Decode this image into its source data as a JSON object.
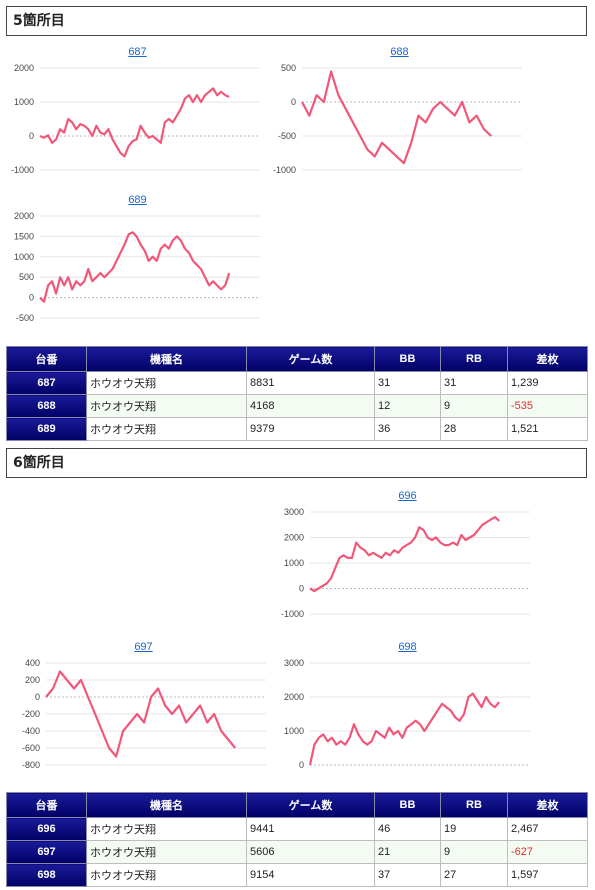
{
  "sections": [
    {
      "title": "5箇所目",
      "columns": [
        "台番",
        "機種名",
        "ゲーム数",
        "BB",
        "RB",
        "差枚"
      ],
      "rows": [
        {
          "no": "687",
          "model": "ホウオウ天翔",
          "games": "8831",
          "bb": "31",
          "rb": "31",
          "diff": "1,239"
        },
        {
          "no": "688",
          "model": "ホウオウ天翔",
          "games": "4168",
          "bb": "12",
          "rb": "9",
          "diff": "-535"
        },
        {
          "no": "689",
          "model": "ホウオウ天翔",
          "games": "9379",
          "bb": "36",
          "rb": "28",
          "diff": "1,521"
        }
      ]
    },
    {
      "title": "6箇所目",
      "columns": [
        "台番",
        "機種名",
        "ゲーム数",
        "BB",
        "RB",
        "差枚"
      ],
      "rows": [
        {
          "no": "696",
          "model": "ホウオウ天翔",
          "games": "9441",
          "bb": "46",
          "rb": "19",
          "diff": "2,467"
        },
        {
          "no": "697",
          "model": "ホウオウ天翔",
          "games": "5606",
          "bb": "21",
          "rb": "9",
          "diff": "-627"
        },
        {
          "no": "698",
          "model": "ホウオウ天翔",
          "games": "9154",
          "bb": "37",
          "rb": "27",
          "diff": "1,597"
        }
      ]
    }
  ],
  "colors": {
    "line": "#f0587a",
    "header": "#00007a",
    "negative": "#e0302e",
    "link": "#1a66cc"
  },
  "chart_data": [
    {
      "type": "line",
      "title": "687",
      "ylim": [
        -1000,
        2000
      ],
      "yticks": [
        -1000,
        0,
        1000,
        2000
      ],
      "values": [
        0,
        -50,
        20,
        -200,
        -100,
        200,
        100,
        500,
        400,
        200,
        350,
        300,
        200,
        0,
        300,
        100,
        50,
        200,
        -100,
        -300,
        -500,
        -600,
        -300,
        -150,
        -100,
        300,
        100,
        -50,
        0,
        -100,
        -200,
        400,
        500,
        400,
        600,
        800,
        1100,
        1200,
        1000,
        1200,
        1000,
        1200,
        1300,
        1400,
        1200,
        1300,
        1200,
        1150
      ]
    },
    {
      "type": "line",
      "title": "688",
      "ylim": [
        -1000,
        500
      ],
      "yticks": [
        -1000,
        -500,
        0,
        500
      ],
      "values": [
        0,
        -200,
        100,
        0,
        450,
        100,
        -100,
        -300,
        -500,
        -700,
        -800,
        -600,
        -700,
        -800,
        -900,
        -600,
        -200,
        -300,
        -100,
        0,
        -100,
        -200,
        0,
        -300,
        -200,
        -400,
        -500
      ]
    },
    {
      "type": "line",
      "title": "689",
      "ylim": [
        -500,
        2000
      ],
      "yticks": [
        -500,
        0,
        500,
        1000,
        1500,
        2000
      ],
      "values": [
        0,
        -100,
        300,
        400,
        100,
        500,
        300,
        500,
        200,
        400,
        300,
        400,
        700,
        400,
        500,
        600,
        500,
        600,
        700,
        900,
        1100,
        1300,
        1550,
        1600,
        1500,
        1300,
        1150,
        900,
        1000,
        900,
        1200,
        1300,
        1200,
        1400,
        1500,
        1400,
        1200,
        1100,
        900,
        800,
        700,
        500,
        300,
        400,
        300,
        200,
        300,
        600
      ]
    },
    {
      "type": "line",
      "title": "696",
      "ylim": [
        -1000,
        3000
      ],
      "yticks": [
        -1000,
        0,
        1000,
        2000,
        3000
      ],
      "values": [
        0,
        -100,
        0,
        100,
        200,
        400,
        800,
        1200,
        1300,
        1200,
        1200,
        1800,
        1600,
        1500,
        1300,
        1400,
        1300,
        1200,
        1400,
        1300,
        1500,
        1400,
        1600,
        1700,
        1800,
        2000,
        2400,
        2300,
        2000,
        1900,
        2000,
        1800,
        1700,
        1700,
        1800,
        1700,
        2100,
        1900,
        2000,
        2100,
        2300,
        2500,
        2600,
        2700,
        2800,
        2650
      ]
    },
    {
      "type": "line",
      "title": "697",
      "ylim": [
        -800,
        400
      ],
      "yticks": [
        -800,
        -600,
        -400,
        -200,
        0,
        200,
        400
      ],
      "values": [
        0,
        100,
        300,
        200,
        100,
        200,
        0,
        -200,
        -400,
        -600,
        -700,
        -400,
        -300,
        -200,
        -300,
        0,
        100,
        -100,
        -200,
        -100,
        -300,
        -200,
        -100,
        -300,
        -200,
        -400,
        -500,
        -600
      ]
    },
    {
      "type": "line",
      "title": "698",
      "ylim": [
        0,
        3000
      ],
      "yticks": [
        0,
        1000,
        2000,
        3000
      ],
      "values": [
        0,
        600,
        800,
        900,
        700,
        800,
        600,
        700,
        600,
        800,
        1200,
        900,
        700,
        600,
        700,
        1000,
        900,
        800,
        1100,
        900,
        1000,
        800,
        1100,
        1200,
        1300,
        1200,
        1000,
        1200,
        1400,
        1600,
        1800,
        1700,
        1600,
        1400,
        1300,
        1500,
        2000,
        2100,
        1900,
        1700,
        2000,
        1800,
        1700,
        1850
      ]
    }
  ]
}
